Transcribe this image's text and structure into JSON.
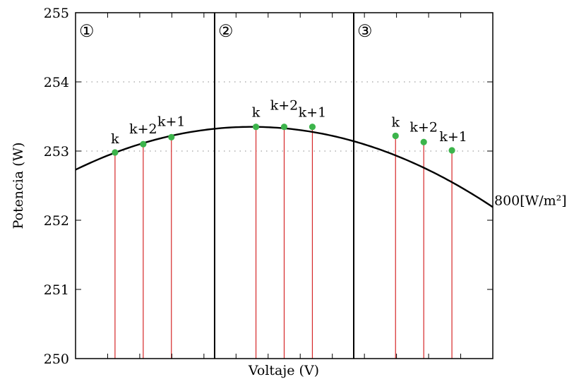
{
  "chart_data": {
    "type": "line",
    "xlabel": "Voltaje (V)",
    "ylabel": "Potencia (W)",
    "ylim": [
      250,
      255
    ],
    "xlim": [
      0,
      1
    ],
    "y_ticks": [
      "250",
      "251",
      "252",
      "253",
      "254",
      "255"
    ],
    "x_tick_labels_shown": false,
    "grid": "dotted horizontal at 253 and 254",
    "region_labels": [
      "①",
      "②",
      "③"
    ],
    "region_dividers_x": [
      0.3333,
      0.6667
    ],
    "series": [
      {
        "name": "800[W/m²]",
        "curve": {
          "peak_x": 0.4223,
          "peak_y": 253.35,
          "y_at_x0": 252.73
        },
        "points": [
          {
            "label": "k",
            "x": 0.0946,
            "y": 252.98
          },
          {
            "label": "k+2",
            "x": 0.1622,
            "y": 253.1
          },
          {
            "label": "k+1",
            "x": 0.2297,
            "y": 253.2
          },
          {
            "label": "k",
            "x": 0.4324,
            "y": 253.35
          },
          {
            "label": "k+2",
            "x": 0.5,
            "y": 253.35
          },
          {
            "label": "k+1",
            "x": 0.5676,
            "y": 253.35
          },
          {
            "label": "k",
            "x": 0.7669,
            "y": 253.22
          },
          {
            "label": "k+2",
            "x": 0.8345,
            "y": 253.13
          },
          {
            "label": "k+1",
            "x": 0.902,
            "y": 253.01
          }
        ]
      }
    ],
    "colors": {
      "curve": "#000000",
      "marker": "#3cb44b",
      "drop_line": "#d62728",
      "grid": "#888888"
    }
  }
}
